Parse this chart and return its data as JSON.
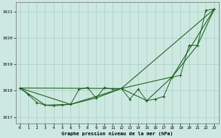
{
  "title": "Graphe pression niveau de la mer (hPa)",
  "bg_color": "#cce8e0",
  "line_color": "#1a5c1a",
  "grid_color": "#a8ccc8",
  "xlim": [
    -0.5,
    23.5
  ],
  "ylim": [
    1016.75,
    1021.35
  ],
  "yticks": [
    1017,
    1018,
    1019,
    1020,
    1021
  ],
  "xticks": [
    0,
    1,
    2,
    3,
    4,
    5,
    6,
    7,
    8,
    9,
    10,
    11,
    12,
    13,
    14,
    15,
    16,
    17,
    18,
    19,
    20,
    21,
    22,
    23
  ],
  "series_detail": {
    "x": [
      0,
      1,
      2,
      3,
      4,
      5,
      6,
      7,
      8,
      9,
      10,
      11,
      12,
      13,
      14,
      15,
      16,
      17,
      18,
      19,
      20,
      21,
      22,
      23
    ],
    "y": [
      1018.1,
      1017.85,
      1017.55,
      1017.45,
      1017.42,
      1017.45,
      1017.48,
      1018.05,
      1018.12,
      1017.72,
      1018.12,
      1018.05,
      1018.08,
      1017.68,
      1018.05,
      1017.62,
      1017.68,
      1017.78,
      1018.52,
      1018.58,
      1019.72,
      1019.72,
      1021.05,
      1021.1
    ]
  },
  "series_3h": {
    "x": [
      0,
      3,
      6,
      9,
      12,
      15,
      18,
      21,
      23
    ],
    "y": [
      1018.1,
      1017.45,
      1017.48,
      1017.72,
      1018.08,
      1017.62,
      1018.52,
      1019.72,
      1021.1
    ]
  },
  "series_6h": {
    "x": [
      0,
      6,
      12,
      18,
      23
    ],
    "y": [
      1018.1,
      1017.48,
      1018.08,
      1018.52,
      1021.1
    ]
  },
  "series_12h": {
    "x": [
      0,
      12,
      23
    ],
    "y": [
      1018.1,
      1018.08,
      1021.1
    ]
  }
}
